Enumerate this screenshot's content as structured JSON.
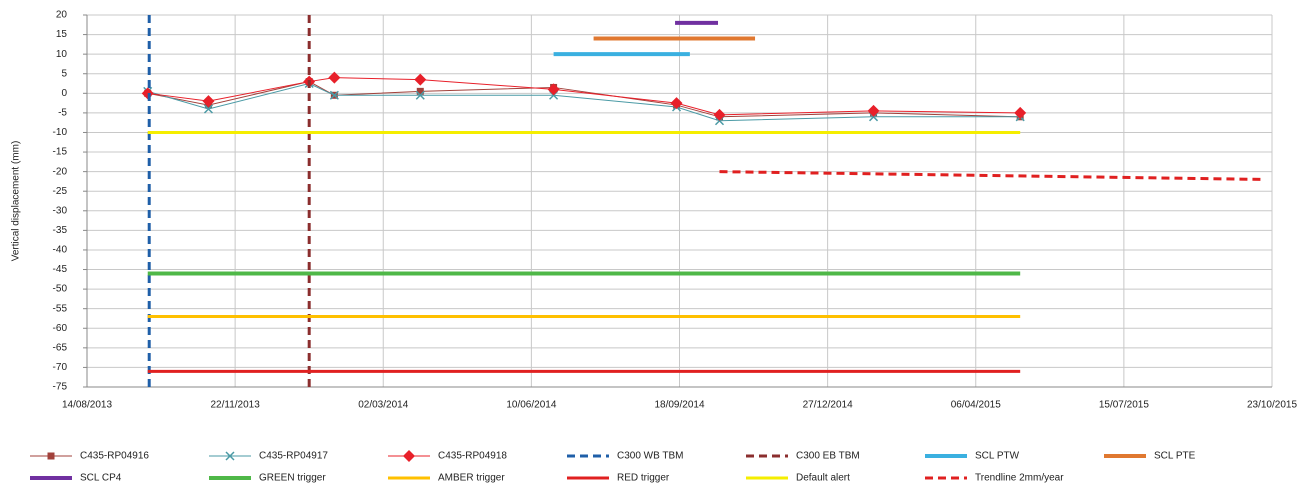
{
  "chart_data": {
    "type": "line",
    "ylabel": "Vertical displacement (mm)",
    "xlim": [
      "2013-08-14",
      "2015-10-23"
    ],
    "xticks": [
      {
        "value": "2013-08-14",
        "label": "14/08/2013"
      },
      {
        "value": "2013-11-22",
        "label": "22/11/2013"
      },
      {
        "value": "2014-03-02",
        "label": "02/03/2014"
      },
      {
        "value": "2014-06-10",
        "label": "10/06/2014"
      },
      {
        "value": "2014-09-18",
        "label": "18/09/2014"
      },
      {
        "value": "2014-12-27",
        "label": "27/12/2014"
      },
      {
        "value": "2015-04-06",
        "label": "06/04/2015"
      },
      {
        "value": "2015-07-15",
        "label": "15/07/2015"
      },
      {
        "value": "2015-10-23",
        "label": "23/10/2015"
      }
    ],
    "ylim": [
      -75,
      20
    ],
    "yticks": [
      -75,
      -70,
      -65,
      -60,
      -55,
      -50,
      -45,
      -40,
      -35,
      -30,
      -25,
      -20,
      -15,
      -10,
      -5,
      0,
      5,
      10,
      15,
      20
    ],
    "grid": true,
    "legend": "bottom",
    "series": [
      {
        "name": "C435-RP04916",
        "color": "#a2413b",
        "width": 1,
        "marker": "square",
        "x": [
          "2013-09-24",
          "2013-11-04",
          "2014-01-11",
          "2014-01-28",
          "2014-03-27",
          "2014-06-25",
          "2014-09-16",
          "2014-10-15",
          "2015-01-27",
          "2015-05-06"
        ],
        "values": [
          0,
          -3,
          3,
          -0.5,
          0.5,
          1.5,
          -3,
          -6,
          -5,
          -6
        ]
      },
      {
        "name": "C435-RP04917",
        "color": "#4a9aa5",
        "width": 1,
        "marker": "x",
        "x": [
          "2013-09-24",
          "2013-11-04",
          "2014-01-11",
          "2014-01-28",
          "2014-03-27",
          "2014-06-25",
          "2014-09-16",
          "2014-10-15",
          "2015-01-27",
          "2015-05-06"
        ],
        "values": [
          0.5,
          -4,
          2.5,
          -0.5,
          -0.5,
          -0.5,
          -3.5,
          -7,
          -6,
          -6
        ]
      },
      {
        "name": "C435-RP04918",
        "color": "#e8202a",
        "width": 1,
        "marker": "diamond",
        "x": [
          "2013-09-24",
          "2013-11-04",
          "2014-01-11",
          "2014-01-28",
          "2014-03-27",
          "2014-06-25",
          "2014-09-16",
          "2014-10-15",
          "2015-01-27",
          "2015-05-06"
        ],
        "values": [
          0,
          -2,
          3,
          4,
          3.5,
          1,
          -2.5,
          -5.5,
          -4.5,
          -5
        ]
      },
      {
        "name": "C300 WB TBM",
        "color": "#1f5fa8",
        "width": 3,
        "dash": true,
        "xline": "2013-09-25"
      },
      {
        "name": "C300 EB TBM",
        "color": "#8b2e2e",
        "width": 3,
        "dash": true,
        "xline": "2014-01-11"
      },
      {
        "name": "SCL PTW",
        "color": "#3ab0e0",
        "width": 4,
        "x": [
          "2014-06-25",
          "2014-09-25"
        ],
        "values": [
          10,
          10
        ]
      },
      {
        "name": "SCL PTE",
        "color": "#e07830",
        "width": 4,
        "x": [
          "2014-07-22",
          "2014-11-08"
        ],
        "values": [
          14,
          14
        ]
      },
      {
        "name": "SCL CP4",
        "color": "#7030a0",
        "width": 4,
        "x": [
          "2014-09-15",
          "2014-10-14"
        ],
        "values": [
          18,
          18
        ]
      },
      {
        "name": "GREEN trigger",
        "color": "#4fb848",
        "width": 4,
        "x": [
          "2013-09-24",
          "2015-05-06"
        ],
        "values": [
          -46,
          -46
        ]
      },
      {
        "name": "AMBER trigger",
        "color": "#ffc000",
        "width": 3,
        "x": [
          "2013-09-24",
          "2015-05-06"
        ],
        "values": [
          -57,
          -57
        ]
      },
      {
        "name": "RED trigger",
        "color": "#e02020",
        "width": 3,
        "x": [
          "2013-09-24",
          "2015-05-06"
        ],
        "values": [
          -71,
          -71
        ]
      },
      {
        "name": "Default alert",
        "color": "#f5ee00",
        "width": 3,
        "x": [
          "2013-09-24",
          "2015-05-06"
        ],
        "values": [
          -10,
          -10
        ]
      },
      {
        "name": "Trendline 2mm/year",
        "color": "#e02020",
        "width": 3,
        "dash": true,
        "x": [
          "2014-10-15",
          "2015-10-18"
        ],
        "values": [
          -20,
          -22
        ]
      }
    ]
  }
}
